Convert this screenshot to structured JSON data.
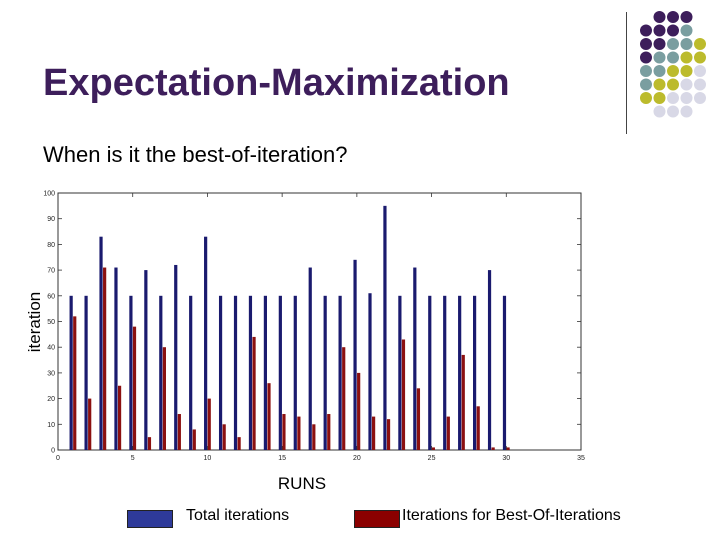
{
  "slide": {
    "title": "Expectation-Maximization",
    "subtitle": "When is it the best-of-iteration?"
  },
  "colors": {
    "title": "#3d1e5b",
    "total_bar": "#1a1a6e",
    "best_bar": "#8b1010",
    "dot_purple": "#3d1e5b",
    "dot_teal": "#7a9ea0",
    "dot_olive": "#bcbb2c",
    "dot_light": "#d8d8e6"
  },
  "legend": {
    "total": {
      "label": "Total iterations",
      "color": "#2e3a9a"
    },
    "best": {
      "label": "Iterations for Best-Of-Iterations",
      "color": "#8b0000"
    }
  },
  "chart_data": {
    "type": "bar",
    "xlabel": "RUNS",
    "ylabel": "iteration",
    "xlim": [
      0,
      35
    ],
    "ylim": [
      0,
      100
    ],
    "x_ticks": [
      "0",
      "5",
      "10",
      "15",
      "20",
      "25",
      "30",
      "35"
    ],
    "y_ticks": [
      "0",
      "10",
      "20",
      "30",
      "40",
      "50",
      "60",
      "70",
      "80",
      "90",
      "100"
    ],
    "grid": false,
    "x": [
      1,
      2,
      3,
      4,
      5,
      6,
      7,
      8,
      9,
      10,
      11,
      12,
      13,
      14,
      15,
      16,
      17,
      18,
      19,
      20,
      21,
      22,
      23,
      24,
      25,
      26,
      27,
      28,
      29,
      30
    ],
    "series": [
      {
        "name": "Total iterations",
        "values": [
          60,
          60,
          83,
          71,
          60,
          70,
          60,
          72,
          60,
          83,
          60,
          60,
          60,
          60,
          60,
          60,
          71,
          60,
          60,
          74,
          61,
          95,
          60,
          71,
          60,
          60,
          60,
          60,
          70,
          60
        ]
      },
      {
        "name": "Iterations for Best-Of-Iterations",
        "values": [
          52,
          20,
          71,
          25,
          48,
          5,
          40,
          14,
          8,
          20,
          10,
          5,
          44,
          26,
          14,
          13,
          10,
          14,
          40,
          30,
          13,
          12,
          43,
          24,
          1,
          13,
          37,
          17,
          1,
          1
        ]
      }
    ]
  }
}
